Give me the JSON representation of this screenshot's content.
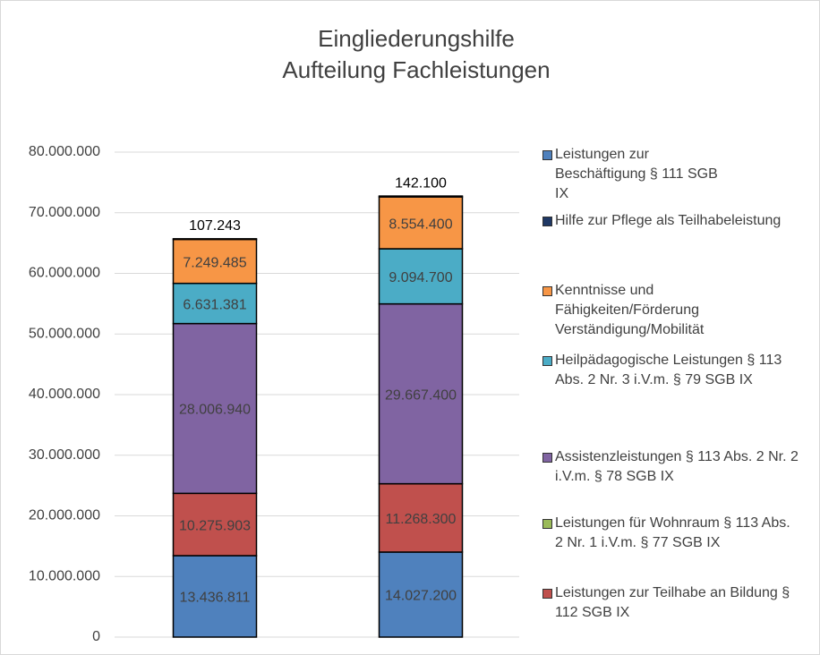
{
  "chart_data": {
    "type": "stacked_bar",
    "title": "Eingliederungshilfe",
    "subtitle": "Aufteilung Fachleistungen",
    "categories": [
      null,
      null
    ],
    "ylim": [
      0,
      80000000
    ],
    "yticks": [
      0,
      {
        "value": 10000000,
        "label": "10.000.000"
      },
      {
        "value": 20000000,
        "label": "20.000.000"
      },
      {
        "value": 30000000,
        "label": "30.000.000"
      },
      {
        "value": 40000000,
        "label": "40.000.000"
      },
      {
        "value": 50000000,
        "label": "50.000.000"
      },
      {
        "value": 60000000,
        "label": "60.000.000"
      },
      {
        "value": 70000000,
        "label": "70.000.000"
      },
      {
        "value": 80000000,
        "label": "80.000.000"
      }
    ],
    "grid": true,
    "legend": "right",
    "series": [
      {
        "name": "Leistungen zur Beschäftigung § 111 SGB IX",
        "color": "#4f81bd",
        "values": [
          13436811,
          14027200
        ],
        "value_labels": [
          "13.436.811",
          "14.027.200"
        ]
      },
      {
        "name": "Leistungen zur Teilhabe an Bildung § 112 SGB IX",
        "color": "#c0504d",
        "values": [
          10275903,
          11268300
        ],
        "value_labels": [
          "10.275.903",
          "11.268.300"
        ]
      },
      {
        "name": "Leistungen für Wohnraum § 113 Abs. 2 Nr. 1 i.V.m. § 77 SGB IX",
        "color": "#9bbb59",
        "values": [
          0,
          0
        ]
      },
      {
        "name": "Assistenzleistungen § 113 Abs. 2 Nr. 2 i.V.m. § 78 SGB IX",
        "color": "#8064a2",
        "values": [
          28006940,
          29667400
        ],
        "value_labels": [
          "28.006.940",
          "29.667.400"
        ]
      },
      {
        "name": "Heilpädagogische Leistungen § 113 Abs. 2 Nr. 3 i.V.m. § 79 SGB IX",
        "color": "#4bacc6",
        "values": [
          6631381,
          9094700
        ],
        "value_labels": [
          "6.631.381",
          "9.094.700"
        ]
      },
      {
        "name": "Kenntnisse und Fähigkeiten/Förderung Verständigung/Mobilität",
        "color": "#f79646",
        "values": [
          7249485,
          8554400
        ],
        "value_labels": [
          "7.249.485",
          "8.554.400"
        ]
      },
      {
        "name": "Hilfe zur Pflege als Teilhabeleistung",
        "color": "#1f3864",
        "values": [
          107243,
          142100
        ],
        "value_labels": [
          "107.243",
          "142.100"
        ]
      }
    ]
  }
}
